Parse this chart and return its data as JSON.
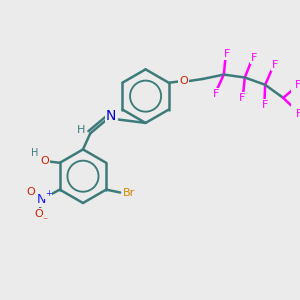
{
  "bg_color": "#ebebeb",
  "bond_color": "#3d7a7a",
  "bond_width": 1.8,
  "atom_colors": {
    "N": "#0000cc",
    "O": "#cc2200",
    "F": "#ff00ff",
    "Br": "#cc8800",
    "H": "#3d7a7a",
    "C": "#3d7a7a"
  },
  "font_size": 8
}
